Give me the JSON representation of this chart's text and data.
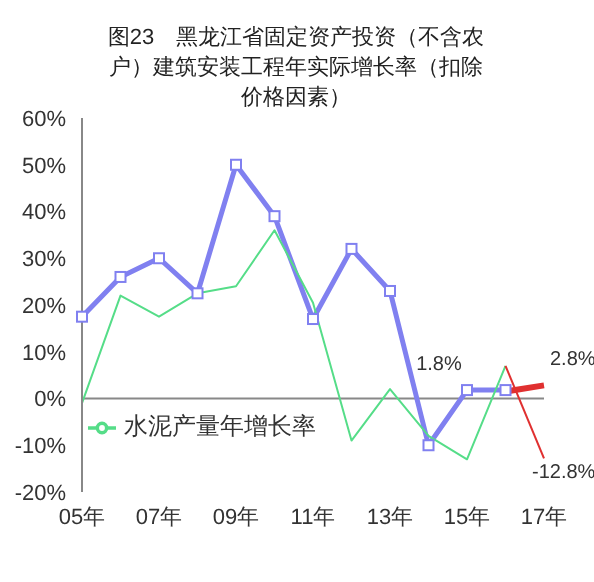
{
  "chart_data": {
    "type": "line",
    "title": "图23　黑龙江省固定资产投资（不含农户）建筑安装工程年实际增长率（扣除价格因素）",
    "categories": [
      "05年",
      null,
      "07年",
      null,
      "09年",
      null,
      "11年",
      null,
      "13年",
      null,
      "15年",
      null,
      "17年"
    ],
    "series": [
      {
        "color": "#8080f0",
        "marker": "square",
        "values": [
          17.5,
          26,
          30,
          22.5,
          50,
          39,
          17,
          32,
          23,
          -10,
          1.8,
          1.8,
          null
        ]
      },
      {
        "name": "水泥产量年增长率",
        "color": "#55dd88",
        "marker": "none",
        "values": [
          -1,
          22,
          17.5,
          22.5,
          24,
          36,
          20.5,
          -9,
          2,
          -8,
          -13,
          7,
          null
        ]
      },
      {
        "color": "#e03030",
        "marker": "none",
        "values": [
          null,
          null,
          null,
          null,
          null,
          null,
          null,
          null,
          null,
          null,
          null,
          7,
          -12.8
        ]
      },
      {
        "color": "#e03030",
        "marker": "none",
        "values": [
          null,
          null,
          null,
          null,
          null,
          null,
          null,
          null,
          null,
          null,
          null,
          1.5,
          2.8
        ]
      }
    ],
    "ylim": [
      -20,
      60
    ],
    "yticks": [
      {
        "value": -20,
        "label": "-20%"
      },
      {
        "value": -10,
        "label": "-10%"
      },
      {
        "value": 0,
        "label": "0%"
      },
      {
        "value": 10,
        "label": "10%"
      },
      {
        "value": 20,
        "label": "20%"
      },
      {
        "value": 30,
        "label": "30%"
      },
      {
        "value": 40,
        "label": "40%"
      },
      {
        "value": 50,
        "label": "50%"
      },
      {
        "value": 60,
        "label": "60%"
      }
    ],
    "annotations": [
      {
        "text": "1.8%",
        "x": "15年",
        "y": 1.8
      },
      {
        "text": "2.8%",
        "x": "17年",
        "y": 2.8
      },
      {
        "text": "-12.8%",
        "x": "17年",
        "y": -12.8
      }
    ],
    "ref_lines": [
      {
        "axis": "y",
        "value": 0,
        "color": "#888888"
      }
    ],
    "legend": "bottom left"
  }
}
